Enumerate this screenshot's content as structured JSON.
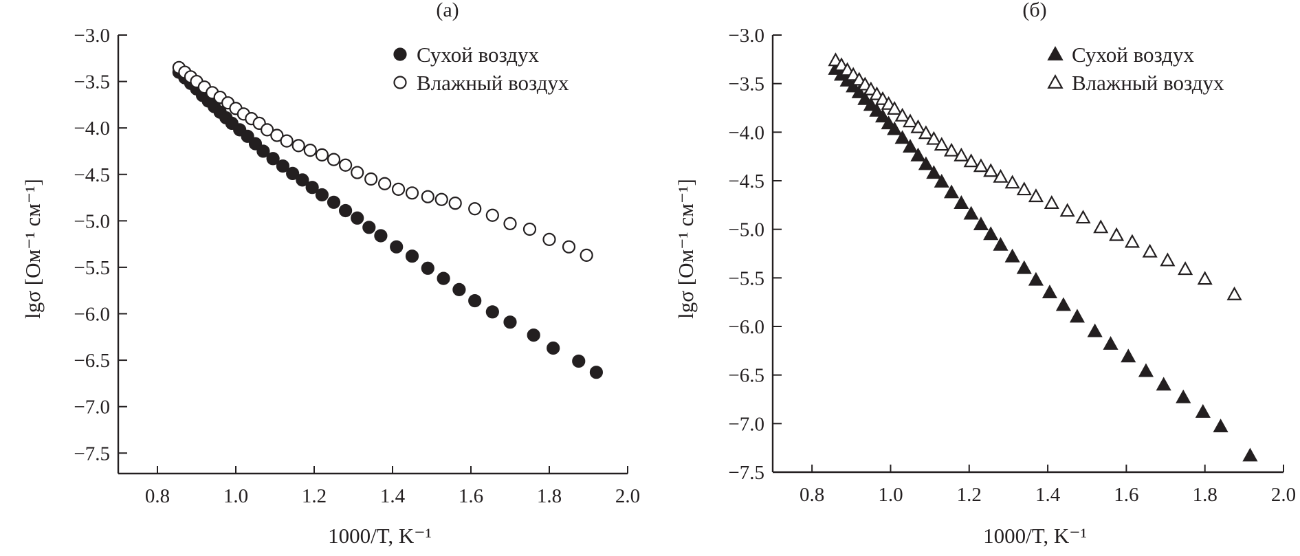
{
  "chart_data": [
    {
      "type": "scatter",
      "title": "(а)",
      "xlabel": "1000/T, K⁻¹",
      "ylabel": "lgσ [Ом⁻¹ см⁻¹]",
      "xlim": [
        0.7,
        2.0
      ],
      "ylim": [
        -7.75,
        -3.0
      ],
      "xticks": [
        0.8,
        1.0,
        1.2,
        1.4,
        1.6,
        1.8,
        2.0
      ],
      "xtick_labels": [
        "0.8",
        "1.0",
        "1.2",
        "1.4",
        "1.6",
        "1.8",
        "2.0"
      ],
      "yticks": [
        -3.0,
        -3.5,
        -4.0,
        -4.5,
        -5.0,
        -5.5,
        -6.0,
        -6.5,
        -7.0,
        -7.5
      ],
      "ytick_labels": [
        "−3.0",
        "−3.5",
        "−4.0",
        "−4.5",
        "−5.0",
        "−5.5",
        "−6.0",
        "−6.5",
        "−7.0",
        "−7.5"
      ],
      "grid": false,
      "legend_position": "top-right",
      "series": [
        {
          "name": "Сухой воздух",
          "marker": "filled-circle",
          "x": [
            0.855,
            0.87,
            0.885,
            0.9,
            0.915,
            0.93,
            0.945,
            0.96,
            0.975,
            0.99,
            1.01,
            1.03,
            1.05,
            1.07,
            1.095,
            1.12,
            1.145,
            1.17,
            1.195,
            1.22,
            1.25,
            1.28,
            1.31,
            1.34,
            1.37,
            1.41,
            1.45,
            1.49,
            1.53,
            1.57,
            1.61,
            1.655,
            1.7,
            1.76,
            1.81,
            1.875,
            1.92
          ],
          "y": [
            -3.4,
            -3.46,
            -3.52,
            -3.58,
            -3.65,
            -3.71,
            -3.77,
            -3.83,
            -3.89,
            -3.95,
            -4.02,
            -4.09,
            -4.17,
            -4.25,
            -4.33,
            -4.41,
            -4.49,
            -4.56,
            -4.64,
            -4.72,
            -4.8,
            -4.89,
            -4.97,
            -5.07,
            -5.16,
            -5.28,
            -5.38,
            -5.51,
            -5.62,
            -5.74,
            -5.86,
            -5.98,
            -6.09,
            -6.23,
            -6.37,
            -6.51,
            -6.63
          ]
        },
        {
          "name": "Влажный воздух",
          "marker": "open-circle",
          "x": [
            0.855,
            0.87,
            0.885,
            0.9,
            0.92,
            0.94,
            0.96,
            0.98,
            1.0,
            1.02,
            1.04,
            1.06,
            1.08,
            1.105,
            1.13,
            1.16,
            1.19,
            1.22,
            1.25,
            1.28,
            1.31,
            1.345,
            1.38,
            1.415,
            1.45,
            1.49,
            1.525,
            1.56,
            1.61,
            1.655,
            1.7,
            1.75,
            1.8,
            1.85,
            1.895
          ],
          "y": [
            -3.35,
            -3.4,
            -3.45,
            -3.5,
            -3.56,
            -3.62,
            -3.67,
            -3.73,
            -3.79,
            -3.85,
            -3.9,
            -3.95,
            -4.02,
            -4.08,
            -4.14,
            -4.19,
            -4.24,
            -4.29,
            -4.34,
            -4.4,
            -4.48,
            -4.55,
            -4.6,
            -4.66,
            -4.7,
            -4.74,
            -4.77,
            -4.81,
            -4.87,
            -4.94,
            -5.03,
            -5.09,
            -5.2,
            -5.28,
            -5.37
          ]
        }
      ]
    },
    {
      "type": "scatter",
      "title": "(б)",
      "xlabel": "1000/T, K⁻¹",
      "ylabel": "lgσ [Ом⁻¹ см⁻¹]",
      "xlim": [
        0.7,
        2.0
      ],
      "ylim": [
        -7.5,
        -3.0
      ],
      "xticks": [
        0.8,
        1.0,
        1.2,
        1.4,
        1.6,
        1.8,
        2.0
      ],
      "xtick_labels": [
        "0.8",
        "1.0",
        "1.2",
        "1.4",
        "1.6",
        "1.8",
        "2.0"
      ],
      "yticks": [
        -3.0,
        -3.5,
        -4.0,
        -4.5,
        -5.0,
        -5.5,
        -6.0,
        -6.5,
        -7.0,
        -7.5
      ],
      "ytick_labels": [
        "−3.0",
        "−3.5",
        "−4.0",
        "−4.5",
        "−5.0",
        "−5.5",
        "−6.0",
        "−6.5",
        "−7.0",
        "−7.5"
      ],
      "grid": false,
      "legend_position": "top-right",
      "series": [
        {
          "name": "Сухой воздух",
          "marker": "filled-triangle",
          "x": [
            0.86,
            0.875,
            0.89,
            0.905,
            0.92,
            0.935,
            0.95,
            0.965,
            0.98,
            0.995,
            1.01,
            1.03,
            1.05,
            1.07,
            1.09,
            1.11,
            1.13,
            1.155,
            1.18,
            1.205,
            1.23,
            1.255,
            1.28,
            1.31,
            1.34,
            1.37,
            1.405,
            1.44,
            1.475,
            1.52,
            1.56,
            1.605,
            1.65,
            1.695,
            1.745,
            1.795,
            1.84,
            1.915
          ],
          "y": [
            -3.35,
            -3.41,
            -3.47,
            -3.53,
            -3.59,
            -3.66,
            -3.72,
            -3.78,
            -3.84,
            -3.91,
            -3.97,
            -4.06,
            -4.15,
            -4.24,
            -4.33,
            -4.42,
            -4.51,
            -4.62,
            -4.73,
            -4.84,
            -4.95,
            -5.05,
            -5.16,
            -5.28,
            -5.4,
            -5.52,
            -5.65,
            -5.78,
            -5.9,
            -6.05,
            -6.18,
            -6.31,
            -6.46,
            -6.6,
            -6.73,
            -6.88,
            -7.03,
            -7.33
          ]
        },
        {
          "name": "Влажный воздух",
          "marker": "open-triangle",
          "x": [
            0.86,
            0.875,
            0.89,
            0.905,
            0.92,
            0.935,
            0.95,
            0.965,
            0.98,
            0.995,
            1.01,
            1.03,
            1.05,
            1.07,
            1.09,
            1.11,
            1.13,
            1.155,
            1.18,
            1.205,
            1.23,
            1.255,
            1.28,
            1.31,
            1.34,
            1.37,
            1.41,
            1.45,
            1.49,
            1.535,
            1.575,
            1.615,
            1.66,
            1.705,
            1.75,
            1.8,
            1.875
          ],
          "y": [
            -3.26,
            -3.31,
            -3.36,
            -3.41,
            -3.46,
            -3.51,
            -3.56,
            -3.61,
            -3.66,
            -3.71,
            -3.76,
            -3.83,
            -3.89,
            -3.95,
            -4.01,
            -4.07,
            -4.13,
            -4.19,
            -4.24,
            -4.3,
            -4.35,
            -4.4,
            -4.46,
            -4.52,
            -4.59,
            -4.66,
            -4.73,
            -4.81,
            -4.88,
            -4.98,
            -5.06,
            -5.13,
            -5.23,
            -5.32,
            -5.41,
            -5.51,
            -5.67
          ]
        }
      ]
    }
  ],
  "colors": {
    "ink": "#231f20",
    "background": "#ffffff"
  }
}
